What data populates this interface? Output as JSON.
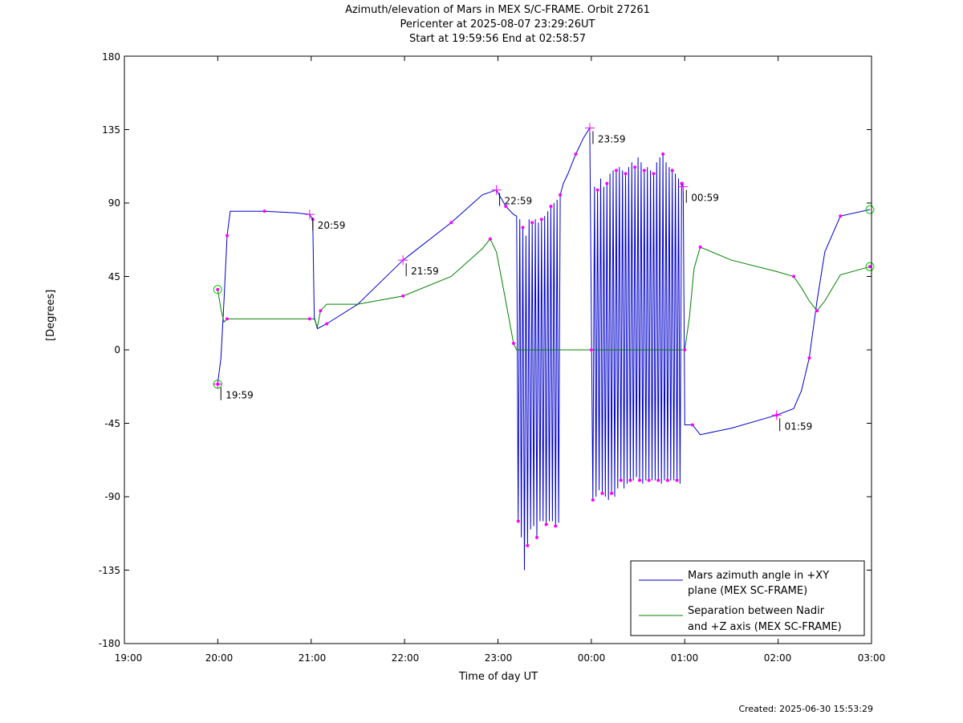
{
  "title_lines": [
    "Azimuth/elevation of Mars in MEX S/C-FRAME.  Orbit 27261",
    "Pericenter at 2025-08-07 23:29:26UT",
    "Start at 19:59:56 End at 02:58:57"
  ],
  "footer": "Created: 2025-06-30 15:53:29",
  "colors": {
    "azimuth": "#0000cc",
    "separation": "#008000",
    "marker": "#ff00ff",
    "endpoint": "#00cc00"
  },
  "chart_data": {
    "type": "line",
    "xlabel": "Time of day UT",
    "ylabel": "[Degrees]",
    "xlim": [
      "19:00",
      "03:00"
    ],
    "ylim": [
      -180,
      180
    ],
    "x_ticks": [
      "19:00",
      "20:00",
      "21:00",
      "22:00",
      "23:00",
      "00:00",
      "01:00",
      "02:00",
      "03:00"
    ],
    "y_ticks": [
      "180",
      "135",
      "90",
      "45",
      "0",
      "-45",
      "-90",
      "-135",
      "-180"
    ],
    "grid": false,
    "legend_position": "bottom-right",
    "series": [
      {
        "name": "Mars azimuth angle in +XY plane (MEX SC-FRAME)",
        "legend_lines": [
          "Mars azimuth angle in +XY",
          "plane (MEX SC-FRAME)"
        ],
        "points": [
          [
            "19:59:56",
            -21
          ],
          [
            "20:02",
            -5
          ],
          [
            "20:04",
            30
          ],
          [
            "20:06",
            70
          ],
          [
            "20:08",
            85
          ],
          [
            "20:10",
            85
          ],
          [
            "20:30",
            85
          ],
          [
            "20:50",
            84
          ],
          [
            "20:59",
            83
          ],
          [
            "21:01",
            80
          ],
          [
            "21:02",
            20
          ],
          [
            "21:04",
            13
          ],
          [
            "21:10",
            16
          ],
          [
            "21:30",
            28
          ],
          [
            "21:59",
            55
          ],
          [
            "22:30",
            78
          ],
          [
            "22:50",
            95
          ],
          [
            "22:59",
            98
          ],
          [
            "23:05",
            88
          ],
          [
            "23:10",
            83
          ],
          [
            "23:12",
            82
          ],
          [
            "23:13",
            -105
          ],
          [
            "23:14",
            80
          ],
          [
            "23:15",
            -115
          ],
          [
            "23:16",
            75
          ],
          [
            "23:17",
            -135
          ],
          [
            "23:18",
            70
          ],
          [
            "23:19",
            -120
          ],
          [
            "23:20",
            80
          ],
          [
            "23:21",
            -110
          ],
          [
            "23:22",
            78
          ],
          [
            "23:23",
            -108
          ],
          [
            "23:24",
            80
          ],
          [
            "23:25",
            -115
          ],
          [
            "23:26",
            78
          ],
          [
            "23:27",
            -105
          ],
          [
            "23:28",
            80
          ],
          [
            "23:29",
            -105
          ],
          [
            "23:30",
            82
          ],
          [
            "23:31",
            -107
          ],
          [
            "23:32",
            85
          ],
          [
            "23:33",
            -105
          ],
          [
            "23:34",
            88
          ],
          [
            "23:35",
            -105
          ],
          [
            "23:36",
            90
          ],
          [
            "23:37",
            -108
          ],
          [
            "23:38",
            92
          ],
          [
            "23:39",
            -106
          ],
          [
            "23:40",
            95
          ],
          [
            "23:42",
            102
          ],
          [
            "23:45",
            108
          ],
          [
            "23:50",
            120
          ],
          [
            "23:55",
            130
          ],
          [
            "23:59",
            136
          ],
          [
            "00:01",
            -92
          ],
          [
            "00:02",
            100
          ],
          [
            "00:03",
            -90
          ],
          [
            "00:04",
            98
          ],
          [
            "00:05",
            -86
          ],
          [
            "00:06",
            105
          ],
          [
            "00:07",
            -88
          ],
          [
            "00:08",
            100
          ],
          [
            "00:09",
            -90
          ],
          [
            "00:10",
            102
          ],
          [
            "00:11",
            -92
          ],
          [
            "00:12",
            108
          ],
          [
            "00:13",
            -88
          ],
          [
            "00:14",
            110
          ],
          [
            "00:15",
            -90
          ],
          [
            "00:16",
            110
          ],
          [
            "00:17",
            -85
          ],
          [
            "00:18",
            112
          ],
          [
            "00:19",
            -80
          ],
          [
            "00:20",
            110
          ],
          [
            "00:21",
            -85
          ],
          [
            "00:22",
            108
          ],
          [
            "00:23",
            -82
          ],
          [
            "00:24",
            112
          ],
          [
            "00:25",
            -80
          ],
          [
            "00:26",
            115
          ],
          [
            "00:27",
            -80
          ],
          [
            "00:28",
            112
          ],
          [
            "00:29",
            -78
          ],
          [
            "00:30",
            118
          ],
          [
            "00:31",
            -80
          ],
          [
            "00:32",
            115
          ],
          [
            "00:33",
            -82
          ],
          [
            "00:34",
            110
          ],
          [
            "00:35",
            -80
          ],
          [
            "00:36",
            112
          ],
          [
            "00:37",
            -80
          ],
          [
            "00:38",
            110
          ],
          [
            "00:39",
            -80
          ],
          [
            "00:40",
            108
          ],
          [
            "00:41",
            -80
          ],
          [
            "00:42",
            115
          ],
          [
            "00:43",
            -80
          ],
          [
            "00:44",
            118
          ],
          [
            "00:45",
            -82
          ],
          [
            "00:46",
            120
          ],
          [
            "00:47",
            -80
          ],
          [
            "00:48",
            115
          ],
          [
            "00:49",
            -80
          ],
          [
            "00:50",
            112
          ],
          [
            "00:51",
            -80
          ],
          [
            "00:52",
            110
          ],
          [
            "00:53",
            -80
          ],
          [
            "00:54",
            108
          ],
          [
            "00:55",
            -80
          ],
          [
            "00:56",
            105
          ],
          [
            "00:57",
            -82
          ],
          [
            "00:58",
            102
          ],
          [
            "00:59",
            100
          ],
          [
            "01:00",
            -46
          ],
          [
            "01:05",
            -46
          ],
          [
            "01:10",
            -52
          ],
          [
            "01:30",
            -48
          ],
          [
            "01:59",
            -40
          ],
          [
            "02:10",
            -36
          ],
          [
            "02:15",
            -25
          ],
          [
            "02:20",
            -5
          ],
          [
            "02:25",
            30
          ],
          [
            "02:30",
            60
          ],
          [
            "02:40",
            82
          ],
          [
            "02:58:57",
            86
          ]
        ]
      },
      {
        "name": "Separation between Nadir and +Z axis (MEX SC-FRAME)",
        "legend_lines": [
          "Separation between Nadir",
          "and +Z axis (MEX SC-FRAME)"
        ],
        "points": [
          [
            "19:59:56",
            37
          ],
          [
            "20:02",
            25
          ],
          [
            "20:04",
            17
          ],
          [
            "20:06",
            19
          ],
          [
            "20:10",
            19
          ],
          [
            "20:30",
            19
          ],
          [
            "20:59",
            19
          ],
          [
            "21:02",
            19
          ],
          [
            "21:04",
            14
          ],
          [
            "21:06",
            24
          ],
          [
            "21:10",
            28
          ],
          [
            "21:30",
            28
          ],
          [
            "21:59",
            33
          ],
          [
            "22:30",
            45
          ],
          [
            "22:50",
            62
          ],
          [
            "22:55",
            68
          ],
          [
            "22:59",
            60
          ],
          [
            "23:05",
            30
          ],
          [
            "23:10",
            4
          ],
          [
            "23:12",
            0
          ],
          [
            "23:30",
            0
          ],
          [
            "00:00",
            0
          ],
          [
            "00:30",
            0
          ],
          [
            "00:59",
            0
          ],
          [
            "01:00",
            0
          ],
          [
            "01:03",
            20
          ],
          [
            "01:06",
            50
          ],
          [
            "01:10",
            63
          ],
          [
            "01:30",
            55
          ],
          [
            "01:59",
            48
          ],
          [
            "02:10",
            45
          ],
          [
            "02:15",
            38
          ],
          [
            "02:20",
            30
          ],
          [
            "02:25",
            24
          ],
          [
            "02:30",
            30
          ],
          [
            "02:40",
            46
          ],
          [
            "02:58:57",
            51
          ]
        ]
      }
    ],
    "hour_labels": [
      {
        "label": "19:59",
        "x": "19:59:56",
        "y": -21
      },
      {
        "label": "20:59",
        "x": "20:59",
        "y": 83
      },
      {
        "label": "21:59",
        "x": "21:59",
        "y": 55
      },
      {
        "label": "22:59",
        "x": "22:59",
        "y": 98
      },
      {
        "label": "23:59",
        "x": "23:59",
        "y": 136
      },
      {
        "label": "00:59",
        "x": "00:59",
        "y": 100
      },
      {
        "label": "01:59",
        "x": "01:59",
        "y": -40
      }
    ]
  }
}
